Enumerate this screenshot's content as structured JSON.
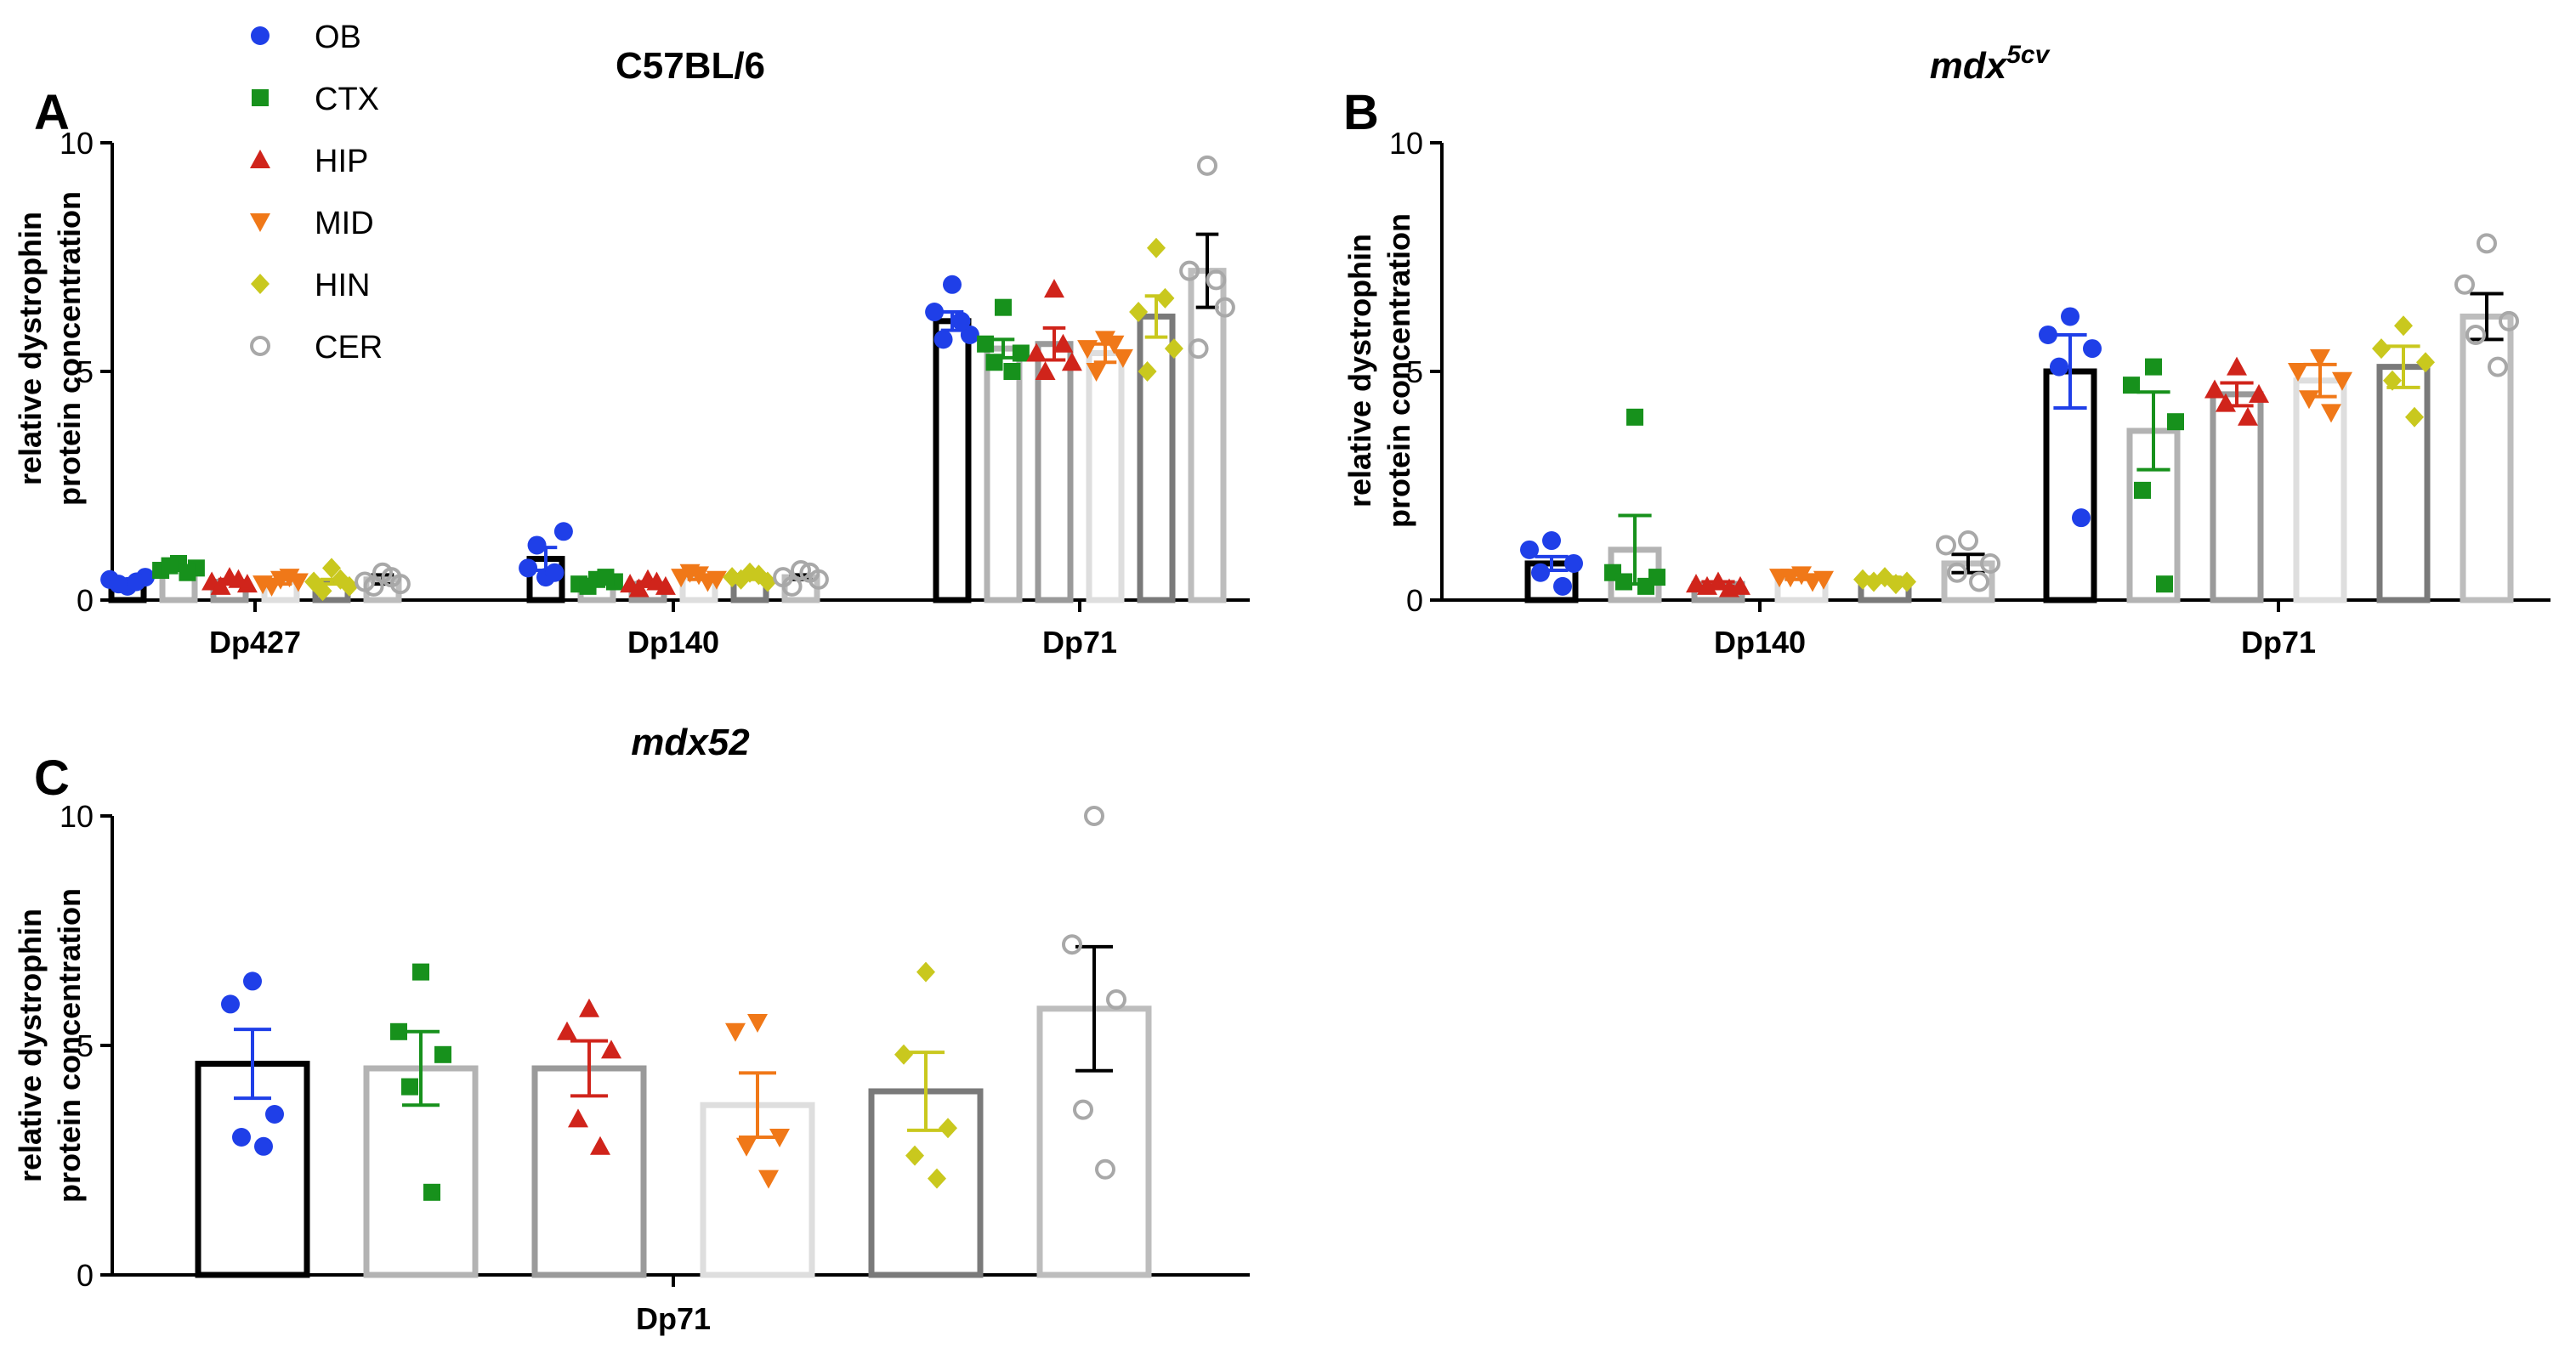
{
  "groups": [
    {
      "key": "OB",
      "label": "OB",
      "marker": "circle",
      "point_color": "#1f3fe8",
      "bar_color": "#000000",
      "err_color": "#1f3fe8"
    },
    {
      "key": "CTX",
      "label": "CTX",
      "marker": "square",
      "point_color": "#17911c",
      "bar_color": "#b3b3b3",
      "err_color": "#17911c"
    },
    {
      "key": "HIP",
      "label": "HIP",
      "marker": "triangle-up",
      "point_color": "#d0241b",
      "bar_color": "#9a9a9a",
      "err_color": "#d0241b"
    },
    {
      "key": "MID",
      "label": "MID",
      "marker": "triangle-down",
      "point_color": "#f07818",
      "bar_color": "#dedede",
      "err_color": "#f07818"
    },
    {
      "key": "HIN",
      "label": "HIN",
      "marker": "diamond",
      "point_color": "#c9c81e",
      "bar_color": "#7a7a7a",
      "err_color": "#c9c81e"
    },
    {
      "key": "CER",
      "label": "CER",
      "marker": "circle-open",
      "point_color": "#a8a8a8",
      "bar_color": "#bdbdbd",
      "err_color": "#000000"
    }
  ],
  "chart_data": [
    {
      "panel": "A",
      "type": "bar",
      "title": "C57BL/6",
      "title_italic": false,
      "ylabel": [
        "relative dystrophin",
        "protein concentration"
      ],
      "ylim": [
        0,
        10
      ],
      "yticks": [
        0,
        5,
        10
      ],
      "categories": [
        "Dp427",
        "Dp140",
        "Dp71"
      ],
      "series": [
        {
          "name": "OB",
          "means": [
            0.4,
            0.9,
            6.1
          ],
          "sem": [
            0.05,
            0.25,
            0.2
          ],
          "points": [
            [
              0.3,
              0.45,
              0.5,
              0.35,
              0.4
            ],
            [
              0.5,
              0.7,
              1.5,
              1.2,
              0.6
            ],
            [
              6.9,
              6.3,
              5.8,
              5.7,
              6.1
            ]
          ]
        },
        {
          "name": "CTX",
          "means": [
            0.7,
            0.4,
            5.5
          ],
          "sem": [
            0.05,
            0.05,
            0.2
          ],
          "points": [
            [
              0.8,
              0.65,
              0.7,
              0.75,
              0.6
            ],
            [
              0.45,
              0.35,
              0.4,
              0.3,
              0.5
            ],
            [
              6.4,
              5.6,
              5.4,
              5.2,
              5.0
            ]
          ]
        },
        {
          "name": "HIP",
          "means": [
            0.4,
            0.35,
            5.6
          ],
          "sem": [
            0.05,
            0.05,
            0.35
          ],
          "points": [
            [
              0.5,
              0.4,
              0.35,
              0.3,
              0.45
            ],
            [
              0.45,
              0.35,
              0.3,
              0.25,
              0.4
            ],
            [
              6.8,
              5.4,
              5.2,
              5.0,
              5.6
            ]
          ]
        },
        {
          "name": "MID",
          "means": [
            0.4,
            0.5,
            5.4
          ],
          "sem": [
            0.05,
            0.05,
            0.2
          ],
          "points": [
            [
              0.45,
              0.35,
              0.4,
              0.3,
              0.5
            ],
            [
              0.55,
              0.5,
              0.45,
              0.6,
              0.4
            ],
            [
              5.7,
              5.5,
              5.3,
              5.0,
              5.6
            ]
          ]
        },
        {
          "name": "HIN",
          "means": [
            0.4,
            0.5,
            6.2
          ],
          "sem": [
            0.05,
            0.05,
            0.45
          ],
          "points": [
            [
              0.7,
              0.4,
              0.3,
              0.2,
              0.45
            ],
            [
              0.6,
              0.5,
              0.4,
              0.45,
              0.55
            ],
            [
              7.7,
              6.3,
              5.5,
              5.0,
              6.6
            ]
          ]
        },
        {
          "name": "CER",
          "means": [
            0.45,
            0.5,
            7.2
          ],
          "sem": [
            0.1,
            0.05,
            0.8
          ],
          "points": [
            [
              0.6,
              0.4,
              0.35,
              0.3,
              0.5
            ],
            [
              0.65,
              0.5,
              0.45,
              0.3,
              0.6
            ],
            [
              9.5,
              7.2,
              6.4,
              5.5,
              7.0
            ]
          ]
        }
      ]
    },
    {
      "panel": "B",
      "type": "bar",
      "title_main": "mdx",
      "title_sup": "5cv",
      "title_italic": true,
      "ylabel": [
        "relative dystrophin",
        "protein concentration"
      ],
      "ylim": [
        0,
        10
      ],
      "yticks": [
        0,
        5,
        10
      ],
      "categories": [
        "Dp140",
        "Dp71"
      ],
      "series": [
        {
          "name": "OB",
          "means": [
            0.8,
            5.0
          ],
          "sem": [
            0.15,
            0.8
          ],
          "points": [
            [
              1.3,
              1.1,
              0.8,
              0.6,
              0.3
            ],
            [
              6.2,
              5.8,
              5.5,
              5.1,
              1.8
            ]
          ]
        },
        {
          "name": "CTX",
          "means": [
            1.1,
            3.7
          ],
          "sem": [
            0.75,
            0.85
          ],
          "points": [
            [
              4.0,
              0.6,
              0.5,
              0.4,
              0.3
            ],
            [
              5.1,
              4.7,
              3.9,
              2.4,
              0.35
            ]
          ]
        },
        {
          "name": "HIP",
          "means": [
            0.35,
            4.5
          ],
          "sem": [
            0.05,
            0.25
          ],
          "points": [
            [
              0.4,
              0.35,
              0.3,
              0.3,
              0.25
            ],
            [
              5.1,
              4.6,
              4.5,
              4.3,
              4.0
            ]
          ]
        },
        {
          "name": "MID",
          "means": [
            0.5,
            4.8
          ],
          "sem": [
            0.05,
            0.35
          ],
          "points": [
            [
              0.55,
              0.5,
              0.45,
              0.5,
              0.4
            ],
            [
              5.3,
              5.0,
              4.8,
              4.4,
              4.1
            ]
          ]
        },
        {
          "name": "HIN",
          "means": [
            0.45,
            5.1
          ],
          "sem": [
            0.05,
            0.45
          ],
          "points": [
            [
              0.5,
              0.45,
              0.4,
              0.4,
              0.35
            ],
            [
              6.0,
              5.5,
              5.2,
              4.8,
              4.0
            ]
          ]
        },
        {
          "name": "CER",
          "means": [
            0.8,
            6.2
          ],
          "sem": [
            0.2,
            0.5
          ],
          "points": [
            [
              1.3,
              1.2,
              0.8,
              0.6,
              0.4
            ],
            [
              7.8,
              6.9,
              6.1,
              5.8,
              5.1
            ]
          ]
        }
      ]
    },
    {
      "panel": "C",
      "type": "bar",
      "title": "mdx52",
      "title_italic": true,
      "ylabel": [
        "relative dystrophin",
        "protein concentration"
      ],
      "ylim": [
        0,
        10
      ],
      "yticks": [
        0,
        5,
        10
      ],
      "categories": [
        "Dp71"
      ],
      "series": [
        {
          "name": "OB",
          "means": [
            4.6
          ],
          "sem": [
            0.75
          ],
          "points": [
            [
              6.4,
              5.9,
              3.5,
              3.0,
              2.8
            ]
          ]
        },
        {
          "name": "CTX",
          "means": [
            4.5
          ],
          "sem": [
            0.8
          ],
          "points": [
            [
              6.6,
              5.3,
              4.8,
              4.1,
              1.8
            ]
          ]
        },
        {
          "name": "HIP",
          "means": [
            4.5
          ],
          "sem": [
            0.6
          ],
          "points": [
            [
              5.8,
              5.3,
              4.9,
              3.4,
              2.8
            ]
          ]
        },
        {
          "name": "MID",
          "means": [
            3.7
          ],
          "sem": [
            0.7
          ],
          "points": [
            [
              5.5,
              5.3,
              3.0,
              2.8,
              2.1
            ]
          ]
        },
        {
          "name": "HIN",
          "means": [
            4.0
          ],
          "sem": [
            0.85
          ],
          "points": [
            [
              6.6,
              4.8,
              3.2,
              2.6,
              2.1
            ]
          ]
        },
        {
          "name": "CER",
          "means": [
            5.8
          ],
          "sem": [
            1.35
          ],
          "points": [
            [
              10.0,
              7.2,
              6.0,
              3.6,
              2.3
            ]
          ]
        }
      ]
    }
  ]
}
